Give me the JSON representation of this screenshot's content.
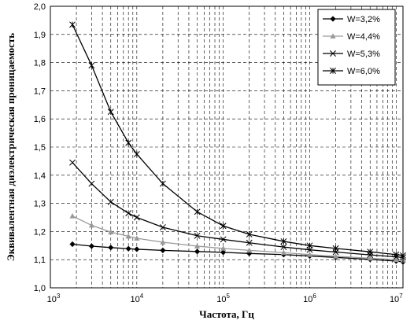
{
  "chart_data": {
    "type": "line",
    "title": "",
    "xlabel": "Частота, Гц",
    "ylabel": "Эквивалентная диэлектрическая проницаемость",
    "x_scale": "log",
    "xlim": [
      1000,
      12000000
    ],
    "ylim": [
      1.0,
      2.0
    ],
    "grid": true,
    "legend_position": "top-right",
    "x_ticks": [
      {
        "value": 1000,
        "base": "10",
        "exp": "3"
      },
      {
        "value": 10000,
        "base": "10",
        "exp": "4"
      },
      {
        "value": 100000,
        "base": "10",
        "exp": "5"
      },
      {
        "value": 1000000,
        "base": "10",
        "exp": "6"
      },
      {
        "value": 10000000,
        "base": "10",
        "exp": "7"
      }
    ],
    "y_ticks": [
      "1,0",
      "1,1",
      "1,2",
      "1,3",
      "1,4",
      "1,5",
      "1,6",
      "1,7",
      "1,8",
      "1,9",
      "2,0"
    ],
    "series": [
      {
        "name": "W=3,2%",
        "marker": "diamond",
        "color": "#000000",
        "x": [
          1800,
          3000,
          5000,
          8000,
          10000,
          20000,
          50000,
          100000,
          200000,
          500000,
          1000000,
          2000000,
          5000000,
          10000000,
          12000000
        ],
        "y": [
          1.155,
          1.148,
          1.143,
          1.139,
          1.137,
          1.133,
          1.129,
          1.126,
          1.122,
          1.118,
          1.113,
          1.108,
          1.101,
          1.095,
          1.092
        ]
      },
      {
        "name": "W=4,4%",
        "marker": "triangle",
        "color": "#999999",
        "x": [
          1800,
          3000,
          5000,
          8000,
          10000,
          20000,
          50000,
          100000,
          200000,
          500000,
          1000000,
          2000000,
          5000000,
          10000000,
          12000000
        ],
        "y": [
          1.255,
          1.222,
          1.198,
          1.183,
          1.176,
          1.162,
          1.148,
          1.14,
          1.133,
          1.125,
          1.118,
          1.112,
          1.105,
          1.1,
          1.098
        ]
      },
      {
        "name": "W=5,3%",
        "marker": "x",
        "color": "#000000",
        "x": [
          1800,
          3000,
          5000,
          8000,
          10000,
          20000,
          50000,
          100000,
          200000,
          500000,
          1000000,
          2000000,
          5000000,
          10000000,
          12000000
        ],
        "y": [
          1.445,
          1.37,
          1.305,
          1.265,
          1.25,
          1.215,
          1.185,
          1.172,
          1.16,
          1.145,
          1.135,
          1.127,
          1.117,
          1.11,
          1.108
        ]
      },
      {
        "name": "W=6,0%",
        "marker": "star",
        "color": "#000000",
        "x": [
          1800,
          3000,
          5000,
          8000,
          10000,
          20000,
          50000,
          100000,
          200000,
          500000,
          1000000,
          2000000,
          5000000,
          10000000,
          12000000
        ],
        "y": [
          1.935,
          1.79,
          1.625,
          1.515,
          1.475,
          1.37,
          1.27,
          1.22,
          1.19,
          1.165,
          1.15,
          1.14,
          1.128,
          1.118,
          1.115
        ]
      }
    ]
  }
}
